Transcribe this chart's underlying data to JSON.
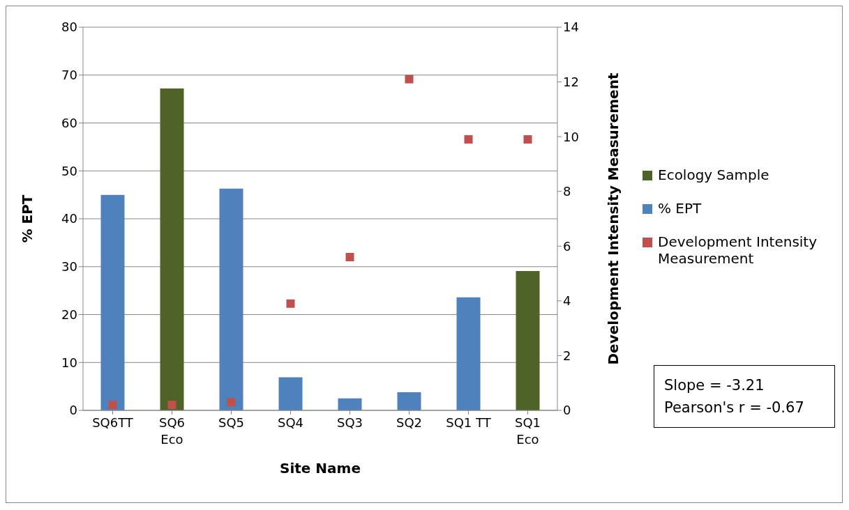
{
  "chart_data": {
    "type": "bar",
    "stacked": true,
    "categories": [
      "SQ6TT",
      "SQ6 Eco",
      "SQ5",
      "SQ4",
      "SQ3",
      "SQ2",
      "SQ1 TT",
      "SQ1 Eco"
    ],
    "series": [
      {
        "name": "Ecology Sample",
        "color": "#4f6228",
        "values": [
          null,
          67.2,
          null,
          null,
          null,
          null,
          null,
          29.1
        ]
      },
      {
        "name": "% EPT",
        "color": "#4f81bd",
        "values": [
          45,
          null,
          46.3,
          6.9,
          2.5,
          3.8,
          23.6,
          null
        ]
      },
      {
        "name": "Development Intensity Measurement",
        "type": "scatter",
        "axis": "y2",
        "color": "#c0504d",
        "marker": "square",
        "values": [
          0.2,
          0.2,
          0.3,
          3.9,
          5.6,
          12.1,
          9.9,
          9.9
        ]
      }
    ],
    "xlabel": "Site Name",
    "ylabel": "% EPT",
    "y2label": "Development Intensity Measurement",
    "ylim": [
      0,
      80
    ],
    "yticks": [
      0,
      10,
      20,
      30,
      40,
      50,
      60,
      70,
      80
    ],
    "y2lim": [
      0,
      14
    ],
    "y2ticks": [
      0,
      2,
      4,
      6,
      8,
      10,
      12,
      14
    ],
    "grid": "y",
    "legend": "right",
    "annotations": [
      "Slope = -3.21",
      "Pearson's r = -0.67"
    ]
  }
}
